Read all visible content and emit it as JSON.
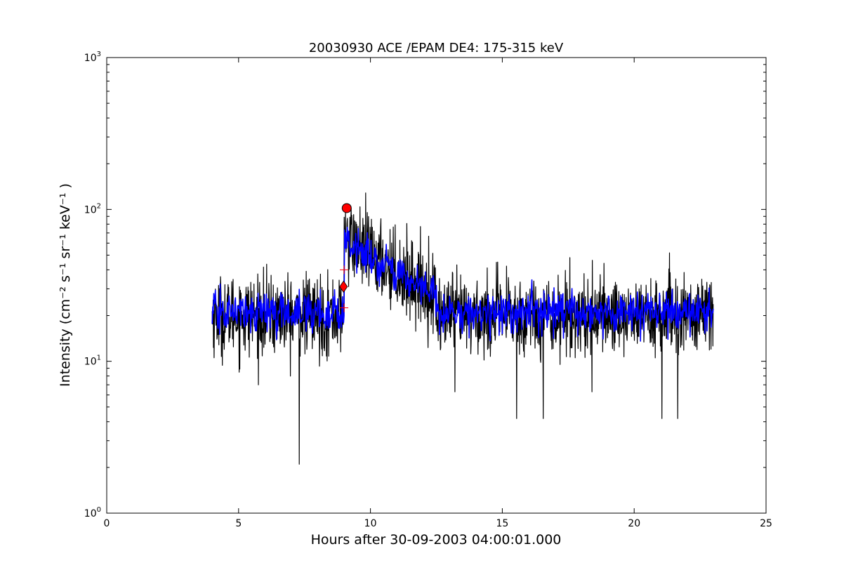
{
  "chart_data": {
    "type": "line",
    "title": "20030930 ACE /EPAM DE4: 175-315 keV",
    "xlabel": "Hours after 30-09-2003 04:00:01.000",
    "ylabel": "Intensity (cm⁻² s⁻¹ sr⁻¹ keV⁻¹ )",
    "xlim": [
      0,
      25
    ],
    "ylim": [
      1,
      1000
    ],
    "yscale": "log",
    "grid": false,
    "legend": "none",
    "x_ticks": [
      "0",
      "5",
      "10",
      "15",
      "20",
      "25"
    ],
    "y_ticks": [
      {
        "base": "10",
        "exp": "0"
      },
      {
        "base": "10",
        "exp": "1"
      },
      {
        "base": "10",
        "exp": "2"
      },
      {
        "base": "10",
        "exp": "3"
      }
    ],
    "series": [
      {
        "color": "#000000",
        "style": "raw",
        "x_range": [
          4.0,
          23.0
        ],
        "segments": [
          {
            "x": [
              4.0,
              8.9
            ],
            "level": 20,
            "spread": 0.3
          },
          {
            "x": [
              9.0,
              9.15
            ],
            "level": 70,
            "spread": 0.2
          },
          {
            "x": [
              9.15,
              12.5
            ],
            "level_start": 62,
            "level_end": 27,
            "spread": 0.3
          },
          {
            "x": [
              12.5,
              23.0
            ],
            "level": 20,
            "spread": 0.3
          }
        ],
        "dips": [
          [
            7.3,
            2.1
          ],
          [
            15.55,
            4.2
          ],
          [
            16.55,
            4.2
          ],
          [
            21.05,
            4.2
          ],
          [
            21.65,
            4.2
          ],
          [
            13.2,
            6.3
          ],
          [
            18.4,
            6.3
          ]
        ]
      },
      {
        "color": "#0000ff",
        "style": "smoothed",
        "x_range": [
          4.0,
          23.0
        ],
        "segments": [
          {
            "x": [
              4.0,
              8.9
            ],
            "level": 21,
            "spread": 0.15
          },
          {
            "x": [
              9.0,
              9.15
            ],
            "level": 65,
            "spread": 0.1
          },
          {
            "x": [
              9.15,
              12.5
            ],
            "level_start": 58,
            "level_end": 27,
            "spread": 0.15
          },
          {
            "x": [
              12.5,
              23.0
            ],
            "level": 21,
            "spread": 0.15
          }
        ]
      }
    ],
    "markers": [
      {
        "type": "circle",
        "x": 9.1,
        "y": 102,
        "color": "#ff0000"
      },
      {
        "type": "diamond",
        "x": 8.98,
        "y": 31,
        "color": "#ff0000"
      },
      {
        "type": "plus",
        "x": 9.0,
        "y": 40,
        "color": "#ff0000"
      },
      {
        "type": "plus",
        "x": 9.0,
        "y": 22.5,
        "color": "#ff0000"
      }
    ]
  }
}
